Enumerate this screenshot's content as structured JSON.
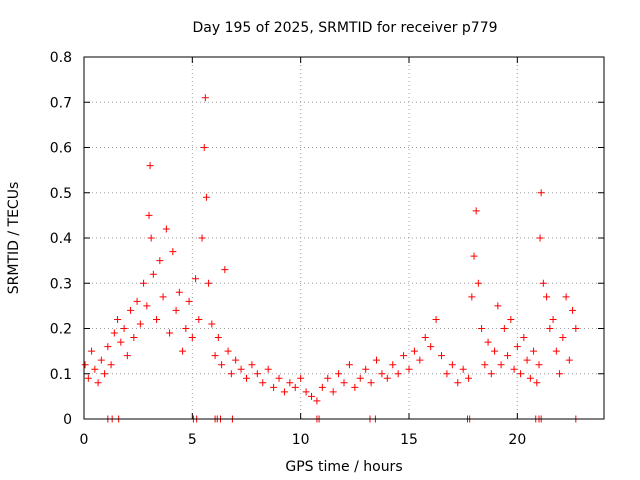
{
  "chart_data": {
    "type": "scatter",
    "title": "Day 195 of 2025, SRMTID for receiver p779",
    "xlabel": "GPS time / hours",
    "ylabel": "SRMTID / TECUs",
    "xlim": [
      0,
      24
    ],
    "ylim": [
      0,
      0.8
    ],
    "xticks": [
      0,
      5,
      10,
      15,
      20
    ],
    "xtick_labels": [
      "0",
      "5",
      "10",
      "15",
      "20"
    ],
    "yticks": [
      0,
      0.1,
      0.2,
      0.3,
      0.4,
      0.5,
      0.6,
      0.7,
      0.8
    ],
    "ytick_labels": [
      "0",
      "0.1",
      "0.2",
      "0.3",
      "0.4",
      "0.5",
      "0.6",
      "0.7",
      "0.8"
    ],
    "grid": true,
    "marker": "+",
    "colors": {
      "series": "#ff0000",
      "grid": "#a0a0a0",
      "axis": "#000000"
    },
    "series": [
      {
        "name": "SRMTID",
        "x": [
          0.05,
          0.2,
          0.35,
          0.5,
          0.65,
          0.8,
          0.95,
          1.1,
          1.25,
          1.4,
          1.55,
          1.7,
          1.85,
          2.0,
          2.15,
          2.3,
          2.45,
          2.6,
          2.75,
          2.9,
          3.0,
          3.05,
          3.1,
          3.2,
          3.35,
          3.5,
          3.65,
          3.8,
          3.95,
          4.1,
          4.25,
          4.4,
          4.55,
          4.7,
          4.85,
          5.0,
          5.15,
          5.3,
          5.45,
          5.55,
          5.6,
          5.65,
          5.75,
          5.9,
          6.05,
          6.2,
          6.35,
          6.5,
          6.65,
          6.8,
          7.0,
          7.25,
          7.5,
          7.75,
          8.0,
          8.25,
          8.5,
          8.75,
          9.0,
          9.25,
          9.5,
          9.75,
          10.0,
          10.25,
          10.5,
          10.75,
          11.0,
          11.25,
          11.5,
          11.75,
          12.0,
          12.25,
          12.5,
          12.75,
          13.0,
          13.25,
          13.5,
          13.75,
          14.0,
          14.25,
          14.5,
          14.75,
          15.0,
          15.25,
          15.5,
          15.75,
          16.0,
          16.25,
          16.5,
          16.75,
          17.0,
          17.25,
          17.5,
          17.75,
          17.9,
          18.0,
          18.1,
          18.2,
          18.35,
          18.5,
          18.65,
          18.8,
          18.95,
          19.1,
          19.25,
          19.4,
          19.55,
          19.7,
          19.85,
          20.0,
          20.15,
          20.3,
          20.45,
          20.6,
          20.75,
          20.9,
          21.0,
          21.05,
          21.1,
          21.2,
          21.35,
          21.5,
          21.65,
          21.8,
          21.95,
          22.1,
          22.25,
          22.4,
          22.55,
          22.7
        ],
        "y": [
          0.12,
          0.09,
          0.15,
          0.11,
          0.08,
          0.13,
          0.1,
          0.16,
          0.12,
          0.19,
          0.22,
          0.17,
          0.2,
          0.14,
          0.24,
          0.18,
          0.26,
          0.21,
          0.3,
          0.25,
          0.45,
          0.56,
          0.4,
          0.32,
          0.22,
          0.35,
          0.27,
          0.42,
          0.19,
          0.37,
          0.24,
          0.28,
          0.15,
          0.2,
          0.26,
          0.18,
          0.31,
          0.22,
          0.4,
          0.6,
          0.71,
          0.49,
          0.3,
          0.21,
          0.14,
          0.18,
          0.12,
          0.33,
          0.15,
          0.1,
          0.13,
          0.11,
          0.09,
          0.12,
          0.1,
          0.08,
          0.11,
          0.07,
          0.09,
          0.06,
          0.08,
          0.07,
          0.09,
          0.06,
          0.05,
          0.04,
          0.07,
          0.09,
          0.06,
          0.1,
          0.08,
          0.12,
          0.07,
          0.09,
          0.11,
          0.08,
          0.13,
          0.1,
          0.09,
          0.12,
          0.1,
          0.14,
          0.11,
          0.15,
          0.13,
          0.18,
          0.16,
          0.22,
          0.14,
          0.1,
          0.12,
          0.08,
          0.11,
          0.09,
          0.27,
          0.36,
          0.46,
          0.3,
          0.2,
          0.12,
          0.17,
          0.1,
          0.15,
          0.25,
          0.12,
          0.2,
          0.14,
          0.22,
          0.11,
          0.16,
          0.1,
          0.18,
          0.13,
          0.09,
          0.15,
          0.08,
          0.12,
          0.4,
          0.5,
          0.3,
          0.27,
          0.2,
          0.22,
          0.15,
          0.1,
          0.18,
          0.27,
          0.13,
          0.24,
          0.2
        ],
        "zero_points_x": [
          1.1,
          1.3,
          1.6,
          5.05,
          5.2,
          6.05,
          6.15,
          6.3,
          6.85,
          10.75,
          10.85,
          13.2,
          13.45,
          17.7,
          17.8,
          20.85,
          21.0,
          21.1,
          22.7
        ]
      }
    ]
  }
}
